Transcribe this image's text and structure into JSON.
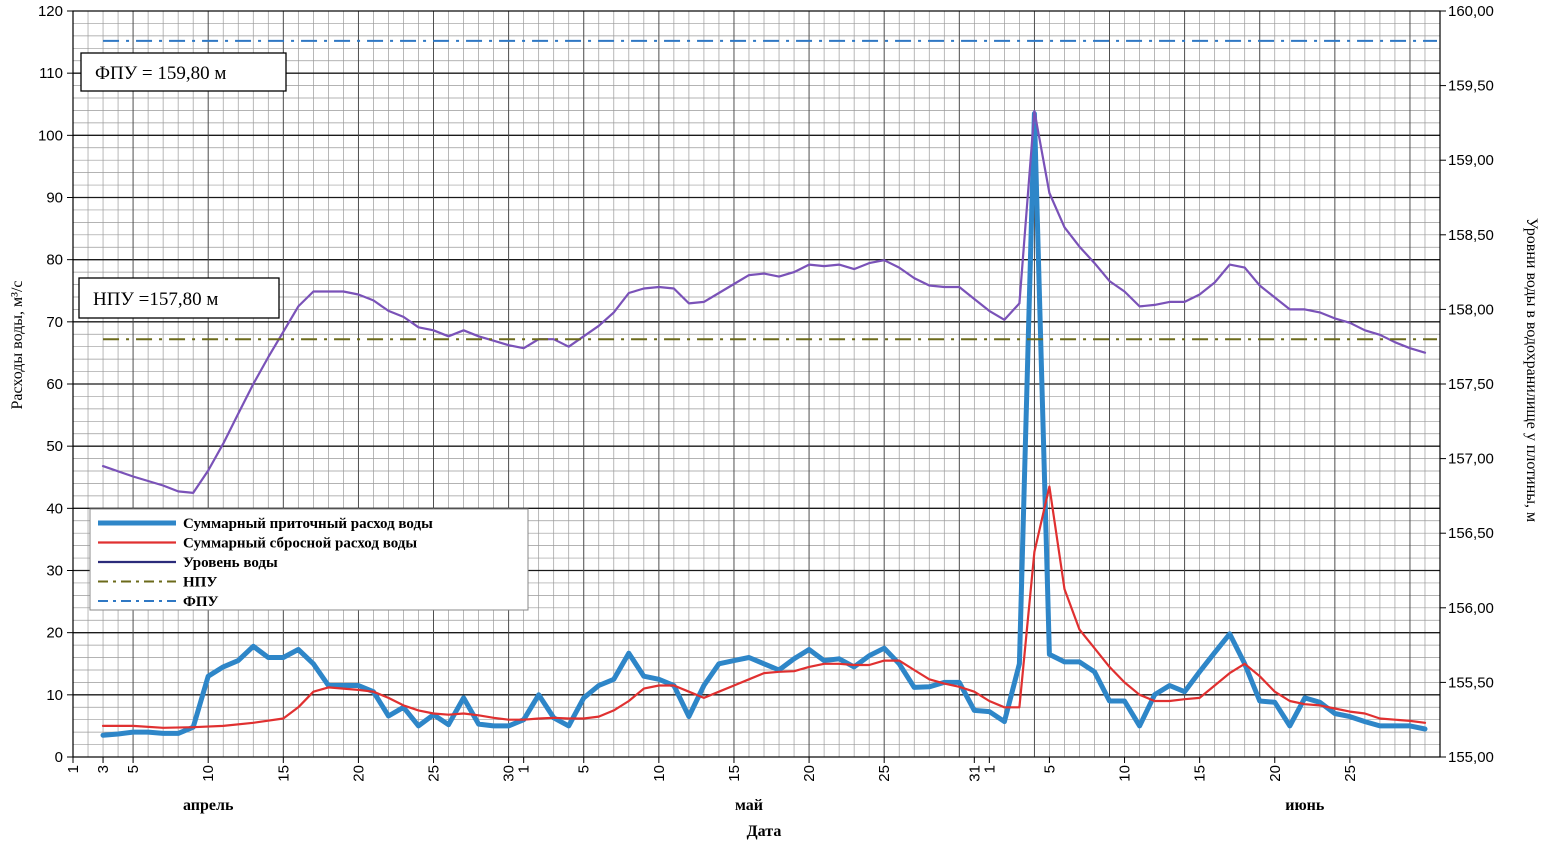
{
  "chart_data": {
    "type": "line",
    "xlabel": "Дата",
    "ylabel_left": "Расходы воды, м³/с",
    "ylabel_right": "Уровни воды в водохранилище у плотины, м",
    "ylim_left": [
      0,
      120
    ],
    "ylim_right": [
      155.0,
      160.0
    ],
    "y_ticks_left": [
      "0",
      "10",
      "20",
      "30",
      "40",
      "50",
      "60",
      "70",
      "80",
      "90",
      "100",
      "110",
      "120"
    ],
    "y_ticks_right": [
      "155,00",
      "155,50",
      "156,00",
      "156,50",
      "157,00",
      "157,50",
      "158,00",
      "158,50",
      "159,00",
      "159,50",
      "160,00"
    ],
    "x_ticks": [
      {
        "label": "1",
        "day": 1
      },
      {
        "label": "3",
        "day": 3
      },
      {
        "label": "5",
        "day": 5
      },
      {
        "label": "10",
        "day": 10
      },
      {
        "label": "15",
        "day": 15
      },
      {
        "label": "20",
        "day": 20
      },
      {
        "label": "25",
        "day": 25
      },
      {
        "label": "30",
        "day": 30
      },
      {
        "label": "1",
        "day": 31
      },
      {
        "label": "5",
        "day": 35
      },
      {
        "label": "10",
        "day": 40
      },
      {
        "label": "15",
        "day": 45
      },
      {
        "label": "20",
        "day": 50
      },
      {
        "label": "25",
        "day": 55
      },
      {
        "label": "31",
        "day": 61
      },
      {
        "label": "1",
        "day": 62
      },
      {
        "label": "5",
        "day": 66
      },
      {
        "label": "10",
        "day": 71
      },
      {
        "label": "15",
        "day": 76
      },
      {
        "label": "20",
        "day": 81
      },
      {
        "label": "25",
        "day": 86
      }
    ],
    "month_labels": [
      {
        "label": "апрель",
        "day": 10
      },
      {
        "label": "май",
        "day": 46
      },
      {
        "label": "июнь",
        "day": 83
      }
    ],
    "grid": true,
    "legend_position": "lower-left",
    "series": [
      {
        "name": "Суммарный приточный расход воды",
        "axis": "left",
        "color": "#2e86c8",
        "x": [
          3,
          4,
          5,
          6,
          7,
          8,
          9,
          10,
          11,
          12,
          13,
          14,
          15,
          16,
          17,
          18,
          19,
          20,
          21,
          22,
          23,
          24,
          25,
          26,
          27,
          28,
          29,
          30,
          31,
          32,
          33,
          34,
          35,
          36,
          37,
          38,
          39,
          40,
          41,
          42,
          43,
          44,
          45,
          46,
          47,
          48,
          49,
          50,
          51,
          52,
          53,
          54,
          55,
          56,
          57,
          58,
          59,
          60,
          61,
          62,
          63,
          64,
          65,
          66,
          67,
          68,
          69,
          70,
          71,
          72,
          73,
          74,
          75,
          76,
          77,
          78,
          79,
          80,
          81,
          82,
          83,
          84,
          85,
          86,
          87,
          88,
          89,
          90,
          91
        ],
        "values": [
          3.5,
          3.7,
          4,
          4,
          3.8,
          3.8,
          4.8,
          13,
          14.5,
          15.5,
          17.8,
          16,
          16,
          17.3,
          15,
          11.5,
          11.5,
          11.5,
          10.5,
          6.6,
          8,
          5,
          6.8,
          5.2,
          9.5,
          5.3,
          5,
          5,
          6,
          10,
          6.3,
          5,
          9.5,
          11.5,
          12.5,
          16.7,
          13,
          12.5,
          11.5,
          6.5,
          11.5,
          15,
          15.5,
          16,
          15,
          14,
          15.8,
          17.3,
          15.5,
          15.8,
          14.5,
          16.3,
          17.5,
          15,
          11.2,
          11.3,
          12,
          12,
          7.5,
          7.3,
          5.7,
          15,
          103.5,
          16.5,
          15.3,
          15.3,
          13.7,
          9,
          9,
          5,
          10,
          11.5,
          10.5,
          13.7,
          16.8,
          19.8,
          15,
          9,
          8.8,
          5,
          9.5,
          8.8,
          7,
          6.5,
          5.7,
          5,
          5,
          5,
          4.5
        ]
      },
      {
        "name": "Суммарный сбросной расход воды",
        "axis": "left",
        "color": "#e03030",
        "x": [
          3,
          5,
          7,
          9,
          11,
          13,
          15,
          16,
          17,
          18,
          19,
          20,
          21,
          22,
          23,
          24,
          25,
          26,
          27,
          28,
          29,
          30,
          31,
          32,
          33,
          34,
          35,
          36,
          37,
          38,
          39,
          40,
          41,
          42,
          43,
          44,
          45,
          46,
          47,
          48,
          49,
          50,
          51,
          52,
          53,
          54,
          55,
          56,
          57,
          58,
          59,
          60,
          61,
          62,
          63,
          64,
          65,
          66,
          67,
          68,
          69,
          70,
          71,
          72,
          73,
          74,
          75,
          76,
          77,
          78,
          79,
          80,
          81,
          82,
          83,
          84,
          85,
          86,
          87,
          88,
          89,
          90,
          91
        ],
        "values": [
          5,
          5,
          4.7,
          4.8,
          5,
          5.5,
          6.2,
          8,
          10.5,
          11.2,
          11,
          10.8,
          10.5,
          9.5,
          8.3,
          7.5,
          7,
          6.8,
          7,
          6.7,
          6.3,
          6,
          6,
          6.2,
          6.3,
          6.2,
          6.2,
          6.5,
          7.5,
          9,
          11,
          11.5,
          11.5,
          10.5,
          9.5,
          10.5,
          11.5,
          12.5,
          13.5,
          13.7,
          13.8,
          14.5,
          15,
          15,
          14.8,
          14.8,
          15.5,
          15.5,
          14,
          12.5,
          11.8,
          11.3,
          10.5,
          9,
          8,
          8,
          33,
          43.5,
          27,
          20.5,
          17.5,
          14.5,
          12,
          10,
          9,
          9,
          9.3,
          9.5,
          11.5,
          13.5,
          15,
          13,
          10.5,
          9,
          8.5,
          8.3,
          7.8,
          7.3,
          7,
          6.2,
          6,
          5.8,
          5.5
        ]
      },
      {
        "name": "Уровень воды",
        "axis": "right",
        "color": "#7a52b8",
        "x": [
          3,
          5,
          7,
          8,
          9,
          10,
          11,
          12,
          13,
          14,
          15,
          16,
          17,
          18,
          19,
          20,
          21,
          22,
          23,
          24,
          25,
          26,
          27,
          28,
          29,
          30,
          31,
          32,
          33,
          34,
          35,
          36,
          37,
          38,
          39,
          40,
          41,
          42,
          43,
          44,
          45,
          46,
          47,
          48,
          49,
          50,
          51,
          52,
          53,
          54,
          55,
          56,
          57,
          58,
          59,
          60,
          61,
          62,
          63,
          64,
          65,
          66,
          67,
          68,
          69,
          70,
          71,
          72,
          73,
          74,
          75,
          76,
          77,
          78,
          79,
          80,
          81,
          82,
          83,
          84,
          85,
          86,
          87,
          88,
          89,
          90,
          91
        ],
        "values": [
          156.95,
          156.88,
          156.82,
          156.78,
          156.77,
          156.92,
          157.1,
          157.3,
          157.5,
          157.68,
          157.85,
          158.02,
          158.12,
          158.12,
          158.12,
          158.1,
          158.06,
          157.99,
          157.95,
          157.88,
          157.86,
          157.82,
          157.86,
          157.82,
          157.79,
          157.76,
          157.74,
          157.8,
          157.8,
          157.75,
          157.82,
          157.89,
          157.98,
          158.11,
          158.14,
          158.15,
          158.14,
          158.04,
          158.05,
          158.11,
          158.17,
          158.23,
          158.24,
          158.22,
          158.25,
          158.3,
          158.29,
          158.3,
          158.27,
          158.31,
          158.33,
          158.28,
          158.21,
          158.16,
          158.15,
          158.15,
          158.07,
          157.99,
          157.93,
          158.04,
          159.33,
          158.78,
          158.55,
          158.42,
          158.31,
          158.19,
          158.12,
          158.02,
          158.03,
          158.05,
          158.05,
          158.1,
          158.18,
          158.3,
          158.28,
          158.16,
          158.08,
          158.0,
          158.0,
          157.98,
          157.94,
          157.91,
          157.86,
          157.83,
          157.78,
          157.74,
          157.71
        ]
      },
      {
        "name": "НПУ",
        "axis": "right",
        "color": "#6b6a1a",
        "level": 157.8
      },
      {
        "name": "ФПУ",
        "axis": "right",
        "color": "#2f78c4",
        "level": 159.8
      }
    ],
    "annotations": [
      {
        "text": "ФПУ = 159,80 м"
      },
      {
        "text": "НПУ  =157,80 м"
      }
    ]
  }
}
